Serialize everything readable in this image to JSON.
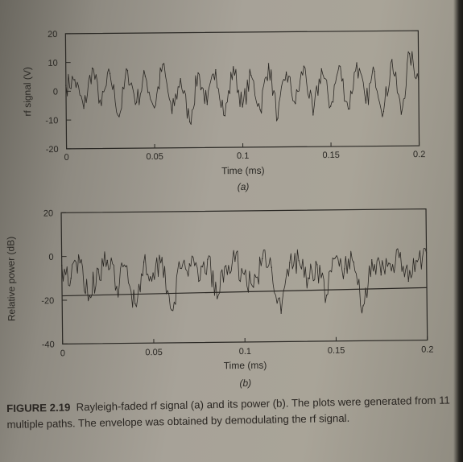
{
  "caption": {
    "label": "FIGURE 2.19",
    "text": "Rayleigh-faded rf signal (a) and its power (b). The plots were generated from 11 multiple paths. The envelope was obtained by demodulating the rf signal."
  },
  "chart_data": [
    {
      "type": "line",
      "panel_label": "(a)",
      "xlabel": "Time (ms)",
      "ylabel": "rf signal (V)",
      "xlim": [
        0,
        0.2
      ],
      "ylim": [
        -20,
        20
      ],
      "xticks": [
        "0",
        "0.05",
        "0.1",
        "0.15",
        "0.2"
      ],
      "yticks": [
        "20",
        "10",
        "0",
        "-10",
        "-20"
      ],
      "x": [
        0,
        0.005,
        0.01,
        0.015,
        0.02,
        0.025,
        0.03,
        0.035,
        0.04,
        0.045,
        0.05,
        0.055,
        0.06,
        0.065,
        0.07,
        0.075,
        0.08,
        0.085,
        0.09,
        0.095,
        0.1,
        0.105,
        0.11,
        0.115,
        0.12,
        0.125,
        0.13,
        0.135,
        0.14,
        0.145,
        0.15,
        0.155,
        0.16,
        0.165,
        0.17,
        0.175,
        0.18,
        0.185,
        0.19,
        0.195,
        0.2
      ],
      "series": [
        {
          "values": [
            2,
            4,
            -6,
            8,
            -5,
            6,
            -9,
            7,
            -4,
            5,
            -6,
            9,
            -8,
            4,
            -11,
            6,
            -5,
            7,
            -9,
            8,
            -6,
            5,
            -7,
            9,
            -10,
            6,
            -5,
            8,
            -9,
            7,
            -6,
            8,
            -7,
            9,
            -5,
            6,
            -8,
            10,
            -9,
            12,
            3
          ]
        }
      ],
      "grid": false
    },
    {
      "type": "line",
      "panel_label": "(b)",
      "xlabel": "Time (ms)",
      "ylabel": "Relative power (dB)",
      "xlim": [
        0,
        0.2
      ],
      "ylim": [
        -40,
        20
      ],
      "xticks": [
        "0",
        "0.05",
        "0.1",
        "0.15",
        "0.2"
      ],
      "yticks": [
        "20",
        "0",
        "-20",
        "-40"
      ],
      "x": [
        0,
        0.005,
        0.01,
        0.015,
        0.02,
        0.025,
        0.03,
        0.035,
        0.04,
        0.045,
        0.05,
        0.055,
        0.06,
        0.065,
        0.07,
        0.075,
        0.08,
        0.085,
        0.09,
        0.095,
        0.1,
        0.105,
        0.11,
        0.115,
        0.12,
        0.125,
        0.13,
        0.135,
        0.14,
        0.145,
        0.15,
        0.155,
        0.16,
        0.165,
        0.17,
        0.175,
        0.18,
        0.185,
        0.19,
        0.195,
        0.2
      ],
      "series": [
        {
          "values": [
            -4,
            -10,
            -3,
            -18,
            -6,
            -2,
            -14,
            -5,
            -22,
            -3,
            -8,
            -1,
            -25,
            -6,
            -4,
            -12,
            -2,
            -20,
            -5,
            -3,
            -9,
            -15,
            -2,
            -6,
            -27,
            -4,
            -3,
            -11,
            -5,
            -19,
            -2,
            -7,
            -4,
            -24,
            -3,
            -10,
            -5,
            -2,
            -13,
            -4,
            0
          ]
        },
        {
          "name": "",
          "x": [
            0,
            0.2
          ],
          "values": [
            -18,
            -16
          ]
        }
      ],
      "grid": false
    }
  ]
}
